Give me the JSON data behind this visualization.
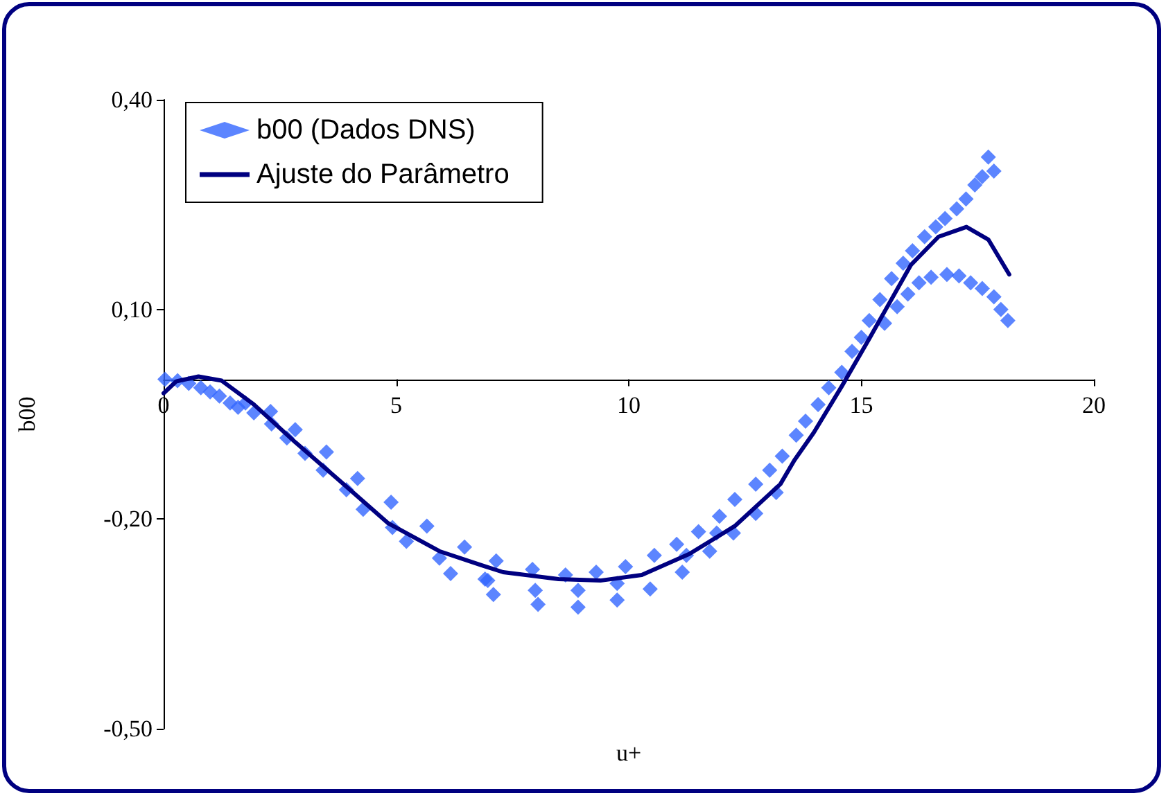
{
  "chart_data": {
    "type": "scatter",
    "xlabel": "u+",
    "ylabel": "b00",
    "xlim": [
      0,
      20
    ],
    "xticks": [
      0,
      5,
      10,
      15,
      20
    ],
    "ylim": [
      -0.5,
      0.4
    ],
    "yticks": [
      {
        "value": -0.5,
        "label": "-0,50"
      },
      {
        "value": -0.2,
        "label": "-0,20"
      },
      {
        "value": 0.1,
        "label": "0,10"
      },
      {
        "value": 0.4,
        "label": "0,40"
      }
    ],
    "grid": false,
    "legend": "top left",
    "marker": "diamond",
    "series": [
      {
        "name": "b00 (Dados DNS)",
        "color": "#3366ff",
        "x": [
          0.03,
          0.3,
          0.54,
          0.8,
          1.0,
          1.2,
          1.43,
          1.6,
          1.76,
          1.94,
          2.3,
          2.32,
          2.65,
          2.83,
          3.04,
          3.5,
          3.43,
          3.93,
          4.17,
          4.29,
          4.89,
          4.92,
          5.22,
          5.66,
          5.93,
          6.17,
          6.47,
          6.91,
          7.15,
          6.97,
          7.09,
          7.93,
          7.99,
          8.05,
          8.64,
          8.91,
          8.91,
          9.3,
          9.75,
          9.75,
          9.93,
          10.55,
          10.46,
          11.15,
          11.03,
          11.24,
          11.5,
          11.74,
          11.89,
          11.95,
          12.28,
          12.25,
          12.73,
          12.73,
          13.17,
          13.03,
          13.3,
          13.6,
          13.8,
          14.07,
          14.3,
          14.58,
          14.8,
          15.0,
          15.17,
          15.4,
          15.65,
          15.9,
          16.1,
          16.36,
          16.6,
          16.8,
          17.05,
          17.25,
          17.44,
          17.6,
          17.73,
          17.85,
          15.5,
          15.77,
          16.0,
          16.24,
          16.5,
          16.84,
          17.1,
          17.35,
          17.6,
          17.85,
          18.0,
          18.15
        ],
        "values": [
          0.0,
          -0.002,
          -0.006,
          -0.012,
          -0.018,
          -0.024,
          -0.034,
          -0.04,
          -0.034,
          -0.048,
          -0.046,
          -0.064,
          -0.084,
          -0.072,
          -0.106,
          -0.104,
          -0.13,
          -0.158,
          -0.142,
          -0.186,
          -0.176,
          -0.212,
          -0.232,
          -0.21,
          -0.256,
          -0.278,
          -0.24,
          -0.286,
          -0.26,
          -0.288,
          -0.308,
          -0.272,
          -0.302,
          -0.322,
          -0.28,
          -0.302,
          -0.326,
          -0.276,
          -0.292,
          -0.316,
          -0.268,
          -0.252,
          -0.3,
          -0.276,
          -0.236,
          -0.252,
          -0.218,
          -0.246,
          -0.22,
          -0.196,
          -0.172,
          -0.22,
          -0.15,
          -0.192,
          -0.162,
          -0.13,
          -0.11,
          -0.08,
          -0.06,
          -0.036,
          -0.012,
          0.01,
          0.04,
          0.06,
          0.084,
          0.114,
          0.144,
          0.166,
          0.184,
          0.204,
          0.218,
          0.23,
          0.244,
          0.258,
          0.278,
          0.29,
          0.318,
          0.298,
          0.08,
          0.104,
          0.122,
          0.138,
          0.146,
          0.15,
          0.148,
          0.138,
          0.13,
          0.118,
          0.1,
          0.084
        ]
      },
      {
        "name": "Ajuste do Parâmetro",
        "type": "line",
        "color": "#000080",
        "marker": "none",
        "x": [
          0,
          0.27,
          0.75,
          1.25,
          1.94,
          2.83,
          3.73,
          4.83,
          5.93,
          6.83,
          7.3,
          8.49,
          9.39,
          10.28,
          11.3,
          12.28,
          13.26,
          13.56,
          13.98,
          14.58,
          15.17,
          15.56,
          16.07,
          16.66,
          17.26,
          17.73,
          18.18
        ],
        "values": [
          -0.02,
          -0.003,
          0.004,
          -0.002,
          -0.036,
          -0.09,
          -0.142,
          -0.206,
          -0.246,
          -0.266,
          -0.276,
          -0.286,
          -0.288,
          -0.28,
          -0.25,
          -0.21,
          -0.15,
          -0.116,
          -0.076,
          -0.01,
          0.058,
          0.104,
          0.164,
          0.204,
          0.218,
          0.2,
          0.15
        ]
      }
    ]
  }
}
